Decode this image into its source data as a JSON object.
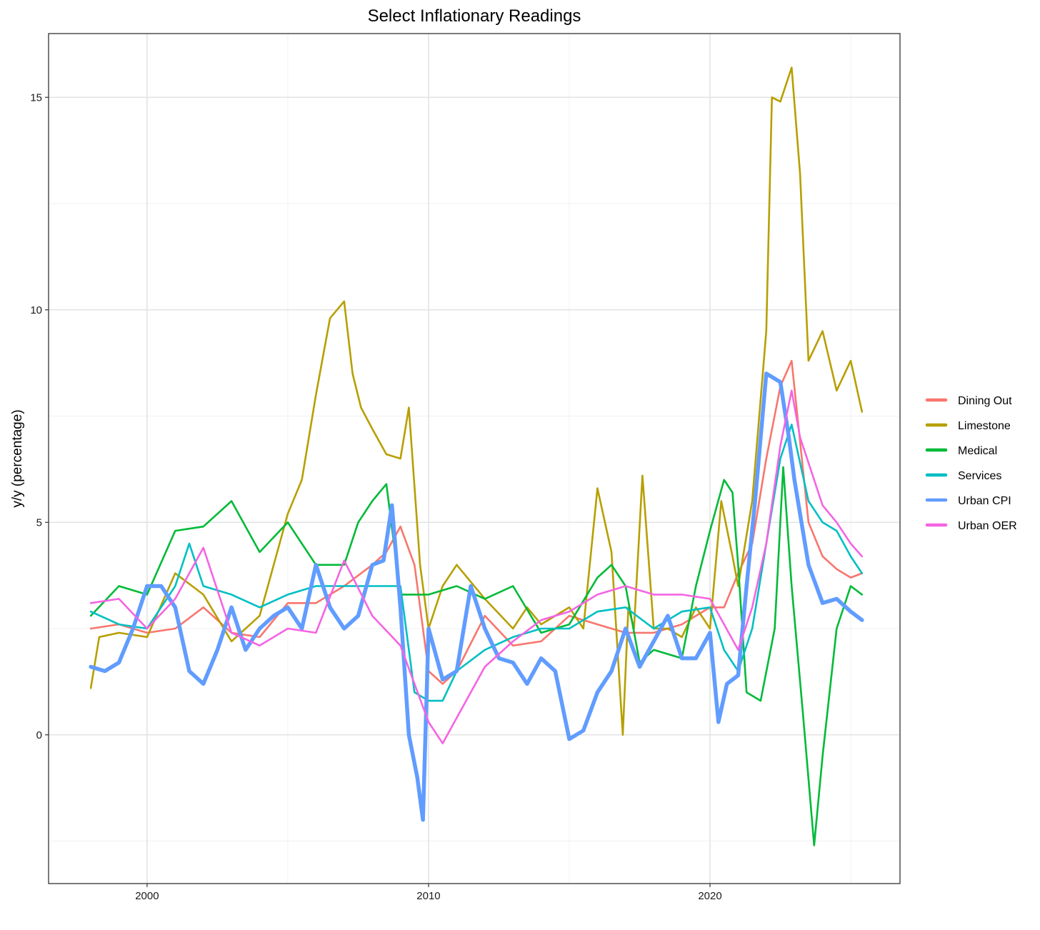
{
  "chart_data": {
    "type": "line",
    "title": "Select Inflationary Readings",
    "xlabel": "",
    "ylabel": "y/y (percentage)",
    "xlim": [
      1996.5,
      2026.75
    ],
    "ylim": [
      -3.5,
      16.5
    ],
    "x_ticks": [
      2000,
      2010,
      2020
    ],
    "x_tick_labels": [
      "2000",
      "2010",
      "2020"
    ],
    "y_ticks": [
      0,
      5,
      10,
      15
    ],
    "y_tick_labels": [
      "0",
      "5",
      "10",
      "15"
    ],
    "grid": true,
    "legend_position": "right",
    "series": [
      {
        "name": "Dining Out",
        "color": "#F8766D",
        "x": [
          1998.0,
          1999.0,
          2000.0,
          2001.0,
          2002.0,
          2003.0,
          2004.0,
          2005.0,
          2006.0,
          2007.0,
          2008.0,
          2008.5,
          2009.0,
          2009.5,
          2010.0,
          2010.5,
          2011.0,
          2012.0,
          2013.0,
          2014.0,
          2015.0,
          2016.0,
          2017.0,
          2018.0,
          2019.0,
          2020.0,
          2020.5,
          2021.0,
          2021.5,
          2022.0,
          2022.5,
          2022.9,
          2023.5,
          2024.0,
          2024.5,
          2025.0,
          2025.4
        ],
        "y": [
          2.5,
          2.6,
          2.4,
          2.5,
          3.0,
          2.4,
          2.3,
          3.1,
          3.1,
          3.5,
          4.0,
          4.3,
          4.9,
          4.0,
          1.5,
          1.2,
          1.5,
          2.8,
          2.1,
          2.2,
          2.8,
          2.6,
          2.4,
          2.4,
          2.6,
          3.0,
          3.0,
          3.8,
          4.5,
          6.5,
          8.2,
          8.8,
          5.0,
          4.2,
          3.9,
          3.7,
          3.8
        ]
      },
      {
        "name": "Limestone",
        "color": "#B79F00",
        "x": [
          1998.0,
          1998.3,
          1999.0,
          2000.0,
          2001.0,
          2002.0,
          2003.0,
          2004.0,
          2004.5,
          2005.0,
          2005.5,
          2006.0,
          2006.5,
          2007.0,
          2007.3,
          2007.6,
          2008.0,
          2008.5,
          2009.0,
          2009.3,
          2009.7,
          2010.0,
          2010.5,
          2011.0,
          2012.0,
          2013.0,
          2013.5,
          2014.0,
          2015.0,
          2015.5,
          2016.0,
          2016.5,
          2016.9,
          2017.1,
          2017.3,
          2017.6,
          2018.0,
          2018.5,
          2019.0,
          2019.5,
          2020.0,
          2020.4,
          2020.8,
          2021.0,
          2021.5,
          2022.0,
          2022.2,
          2022.5,
          2022.9,
          2023.2,
          2023.5,
          2024.0,
          2024.5,
          2025.0,
          2025.4
        ],
        "y": [
          1.1,
          2.3,
          2.4,
          2.3,
          3.8,
          3.3,
          2.2,
          2.8,
          4.0,
          5.2,
          6.0,
          8.0,
          9.8,
          10.2,
          8.5,
          7.7,
          7.2,
          6.6,
          6.5,
          7.7,
          4.0,
          2.5,
          3.5,
          4.0,
          3.2,
          2.5,
          3.0,
          2.6,
          3.0,
          2.5,
          5.8,
          4.3,
          0.0,
          3.0,
          2.5,
          6.1,
          2.5,
          2.5,
          2.3,
          3.0,
          2.5,
          5.5,
          4.2,
          3.5,
          5.5,
          9.5,
          15.0,
          14.9,
          15.7,
          13.2,
          8.8,
          9.5,
          8.1,
          8.8,
          7.6
        ]
      },
      {
        "name": "Medical",
        "color": "#00BA38",
        "x": [
          1998.0,
          1999.0,
          2000.0,
          2001.0,
          2002.0,
          2003.0,
          2004.0,
          2005.0,
          2006.0,
          2007.0,
          2007.5,
          2008.0,
          2008.5,
          2009.0,
          2010.0,
          2011.0,
          2012.0,
          2013.0,
          2014.0,
          2015.0,
          2016.0,
          2016.5,
          2017.0,
          2017.5,
          2018.0,
          2019.0,
          2019.5,
          2020.0,
          2020.5,
          2020.8,
          2021.0,
          2021.3,
          2021.8,
          2022.3,
          2022.6,
          2022.9,
          2023.3,
          2023.7,
          2024.0,
          2024.5,
          2025.0,
          2025.4
        ],
        "y": [
          2.8,
          3.5,
          3.3,
          4.8,
          4.9,
          5.5,
          4.3,
          5.0,
          4.0,
          4.0,
          5.0,
          5.5,
          5.9,
          3.3,
          3.3,
          3.5,
          3.2,
          3.5,
          2.4,
          2.6,
          3.7,
          4.0,
          3.5,
          1.7,
          2.0,
          1.8,
          3.5,
          4.8,
          6.0,
          5.7,
          4.0,
          1.0,
          0.8,
          2.5,
          6.3,
          3.5,
          0.5,
          -2.6,
          -0.5,
          2.5,
          3.5,
          3.3
        ]
      },
      {
        "name": "Services",
        "color": "#00BFC4",
        "x": [
          1998.0,
          1999.0,
          2000.0,
          2001.0,
          2001.5,
          2002.0,
          2003.0,
          2004.0,
          2005.0,
          2006.0,
          2007.0,
          2008.0,
          2009.0,
          2009.5,
          2010.0,
          2010.5,
          2011.0,
          2012.0,
          2013.0,
          2014.0,
          2015.0,
          2016.0,
          2017.0,
          2018.0,
          2019.0,
          2020.0,
          2020.5,
          2021.0,
          2021.5,
          2022.0,
          2022.5,
          2022.9,
          2023.5,
          2024.0,
          2024.5,
          2025.0,
          2025.4
        ],
        "y": [
          2.9,
          2.6,
          2.5,
          3.5,
          4.5,
          3.5,
          3.3,
          3.0,
          3.3,
          3.5,
          3.5,
          3.5,
          3.5,
          1.0,
          0.8,
          0.8,
          1.5,
          2.0,
          2.3,
          2.5,
          2.5,
          2.9,
          3.0,
          2.5,
          2.9,
          3.0,
          2.0,
          1.5,
          2.5,
          4.5,
          6.5,
          7.3,
          5.5,
          5.0,
          4.8,
          4.2,
          3.8
        ]
      },
      {
        "name": "Urban CPI",
        "color": "#619CFF",
        "x": [
          1998.0,
          1998.5,
          1999.0,
          1999.5,
          2000.0,
          2000.5,
          2001.0,
          2001.5,
          2002.0,
          2002.5,
          2003.0,
          2003.5,
          2004.0,
          2004.5,
          2005.0,
          2005.5,
          2006.0,
          2006.5,
          2007.0,
          2007.5,
          2008.0,
          2008.4,
          2008.7,
          2009.0,
          2009.3,
          2009.6,
          2009.8,
          2010.0,
          2010.5,
          2011.0,
          2011.5,
          2012.0,
          2012.5,
          2013.0,
          2013.5,
          2014.0,
          2014.5,
          2015.0,
          2015.5,
          2016.0,
          2016.5,
          2017.0,
          2017.5,
          2018.0,
          2018.5,
          2019.0,
          2019.5,
          2020.0,
          2020.3,
          2020.6,
          2021.0,
          2021.3,
          2021.6,
          2022.0,
          2022.5,
          2022.8,
          2023.0,
          2023.5,
          2024.0,
          2024.5,
          2025.0,
          2025.4
        ],
        "y": [
          1.6,
          1.5,
          1.7,
          2.5,
          3.5,
          3.5,
          3.0,
          1.5,
          1.2,
          2.0,
          3.0,
          2.0,
          2.5,
          2.8,
          3.0,
          2.5,
          4.0,
          3.0,
          2.5,
          2.8,
          4.0,
          4.1,
          5.4,
          3.0,
          0.0,
          -1.0,
          -2.0,
          2.5,
          1.3,
          1.5,
          3.5,
          2.5,
          1.8,
          1.7,
          1.2,
          1.8,
          1.5,
          -0.1,
          0.1,
          1.0,
          1.5,
          2.5,
          1.6,
          2.2,
          2.8,
          1.8,
          1.8,
          2.4,
          0.3,
          1.2,
          1.4,
          3.5,
          5.5,
          8.5,
          8.3,
          7.0,
          6.0,
          4.0,
          3.1,
          3.2,
          2.9,
          2.7
        ]
      },
      {
        "name": "Urban OER",
        "color": "#F564E3",
        "x": [
          1998.0,
          1999.0,
          2000.0,
          2001.0,
          2002.0,
          2003.0,
          2004.0,
          2005.0,
          2006.0,
          2007.0,
          2008.0,
          2009.0,
          2010.0,
          2010.5,
          2011.0,
          2012.0,
          2013.0,
          2014.0,
          2015.0,
          2016.0,
          2017.0,
          2018.0,
          2019.0,
          2020.0,
          2020.5,
          2021.0,
          2021.5,
          2022.0,
          2022.5,
          2022.9,
          2023.2,
          2023.7,
          2024.0,
          2024.5,
          2025.0,
          2025.4
        ],
        "y": [
          3.1,
          3.2,
          2.5,
          3.2,
          4.4,
          2.4,
          2.1,
          2.5,
          2.4,
          4.1,
          2.8,
          2.1,
          0.3,
          -0.2,
          0.4,
          1.6,
          2.2,
          2.7,
          2.9,
          3.3,
          3.5,
          3.3,
          3.3,
          3.2,
          2.6,
          2.0,
          3.0,
          4.5,
          6.8,
          8.1,
          7.0,
          6.0,
          5.4,
          5.0,
          4.5,
          4.2
        ]
      }
    ]
  }
}
